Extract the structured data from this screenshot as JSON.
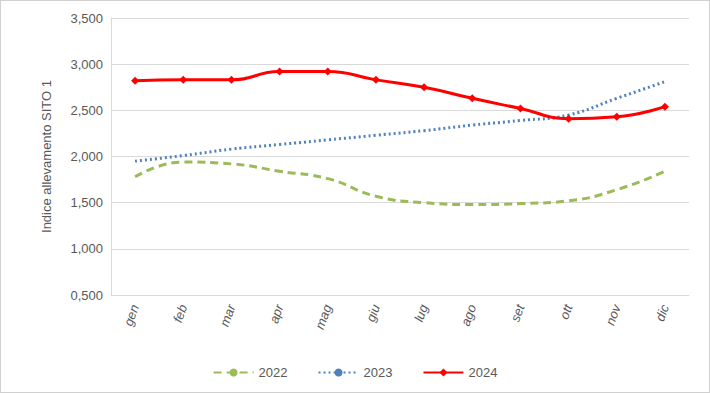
{
  "chart_data": {
    "type": "line",
    "y_label": "Indice allevamento SITO 1",
    "categories": [
      "gen",
      "feb",
      "mar",
      "apr",
      "mag",
      "giu",
      "lug",
      "ago",
      "set",
      "ott",
      "nov",
      "dic"
    ],
    "series": [
      {
        "name": "2022",
        "color": "#9BBB59",
        "line_style": "dashed",
        "marker": "none",
        "values": [
          1.78,
          1.94,
          1.92,
          1.84,
          1.76,
          1.57,
          1.5,
          1.48,
          1.49,
          1.52,
          1.64,
          1.84
        ]
      },
      {
        "name": "2023",
        "color": "#4F81BD",
        "line_style": "dotted",
        "marker": "none",
        "values": [
          1.95,
          2.01,
          2.08,
          2.13,
          2.18,
          2.23,
          2.28,
          2.34,
          2.39,
          2.45,
          2.63,
          2.81
        ]
      },
      {
        "name": "2024",
        "color": "#FF0000",
        "line_style": "solid",
        "marker": "diamond",
        "values": [
          2.82,
          2.83,
          2.83,
          2.92,
          2.92,
          2.83,
          2.75,
          2.63,
          2.52,
          2.41,
          2.43,
          2.54
        ]
      }
    ],
    "ylim": [
      0.5,
      3.5
    ],
    "yticks": [
      {
        "value": 0.5,
        "label": "0,500"
      },
      {
        "value": 1,
        "label": "1,000"
      },
      {
        "value": 1.5,
        "label": "1,500"
      },
      {
        "value": 2,
        "label": "2,000"
      },
      {
        "value": 2.5,
        "label": "2,500"
      },
      {
        "value": 3,
        "label": "3,000"
      },
      {
        "value": 3.5,
        "label": "3,500"
      }
    ],
    "grid": true,
    "legend": "bottom"
  }
}
